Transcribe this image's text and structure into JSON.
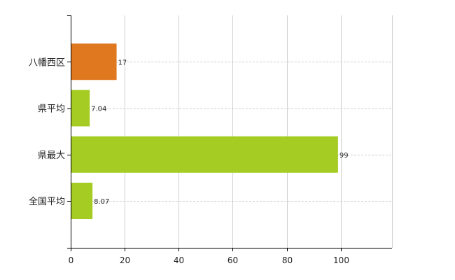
{
  "chart_data": {
    "type": "bar",
    "orientation": "horizontal",
    "categories": [
      "八幡西区",
      "県平均",
      "県最大",
      "全国平均"
    ],
    "values": [
      17,
      7.04,
      99,
      8.07
    ],
    "value_labels": [
      "17",
      "7.04",
      "99",
      "8.07"
    ],
    "colors": [
      "#e07820",
      "#a4cc22",
      "#a4cc22",
      "#a4cc22"
    ],
    "xlim": [
      0,
      119
    ],
    "xticks": [
      0,
      20,
      40,
      60,
      80,
      100
    ],
    "grid": true
  }
}
